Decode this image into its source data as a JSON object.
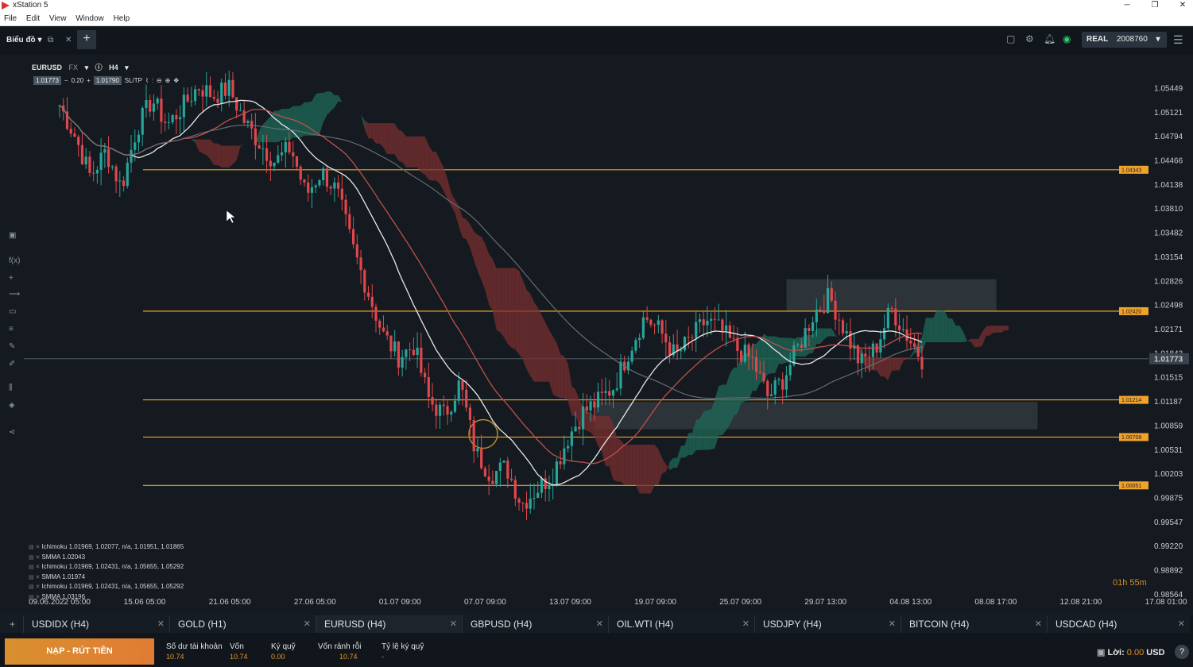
{
  "window": {
    "title": "xStation 5",
    "controls": [
      "─",
      "❐",
      "✕"
    ]
  },
  "menu": [
    "File",
    "Edit",
    "View",
    "Window",
    "Help"
  ],
  "header": {
    "tab_label": "Biểu đồ",
    "account_type": "REAL",
    "account_number": "2008760"
  },
  "instrument": {
    "symbol": "EURUSD",
    "market": "FX",
    "timeframe": "H4",
    "bid": "1.01773",
    "volume": "0.20",
    "ask": "1.01790",
    "sltp_label": "SL/TP"
  },
  "chart_data": {
    "type": "candlestick",
    "symbol": "EURUSD",
    "timeframe": "H4",
    "y_ticks": [
      "1.05449",
      "1.05121",
      "1.04794",
      "1.04466",
      "1.04138",
      "1.03810",
      "1.03482",
      "1.03154",
      "1.02826",
      "1.02498",
      "1.02171",
      "1.01843",
      "1.01515",
      "1.01187",
      "1.00859",
      "1.00531",
      "1.00203",
      "0.99875",
      "0.99547",
      "0.99220",
      "0.98892",
      "0.98564"
    ],
    "ylim": [
      0.98564,
      1.05777
    ],
    "x_ticks": [
      "09.06.2022 05:00",
      "15.06 05:00",
      "21.06 05:00",
      "27.06 05:00",
      "01.07 09:00",
      "07.07 09:00",
      "13.07 09:00",
      "19.07 09:00",
      "25.07 09:00",
      "29.07 13:00",
      "04.08 13:00",
      "08.08 17:00",
      "12.08 21:00",
      "17.08 01:00"
    ],
    "current_price": "1.01773",
    "horizontal_levels": [
      "1.04343",
      "1.02420",
      "1.01214",
      "1.00708",
      "1.00051"
    ],
    "price_path": [
      1.0522,
      1.048,
      1.0425,
      1.046,
      1.041,
      1.049,
      1.053,
      1.0495,
      1.052,
      1.0548,
      1.0535,
      1.0545,
      1.05,
      1.047,
      1.0445,
      1.0465,
      1.04,
      1.0432,
      1.0405,
      1.033,
      1.027,
      1.021,
      1.018,
      1.0195,
      1.012,
      1.01,
      1.0145,
      1.005,
      1.002,
      1.003,
      0.998,
      1.0,
      1.002,
      1.007,
      1.0105,
      1.012,
      1.014,
      1.019,
      1.0235,
      1.0215,
      1.018,
      1.0205,
      1.023,
      1.0215,
      1.019,
      1.0175,
      1.0125,
      1.015,
      1.0195,
      1.024,
      1.0262,
      1.0215,
      1.017,
      1.0192,
      1.0245,
      1.021,
      1.0177
    ]
  },
  "legend": [
    "Ichimoku 1.01969, 1.02077, n/a, 1.01951, 1.01865",
    "SMMA 1.02043",
    "Ichimoku 1.01969, 1.02431, n/a, 1.05655, 1.05292",
    "SMMA 1.01974",
    "Ichimoku 1.01969, 1.02431, n/a, 1.05655, 1.05292",
    "SMMA 1.03196"
  ],
  "timer": "01h 55m",
  "symbol_tabs": [
    "USDIDX (H4)",
    "GOLD (H1)",
    "EURUSD (H4)",
    "GBPUSD (H4)",
    "OIL.WTI (H4)",
    "USDJPY (H4)",
    "BITCOIN (H4)",
    "USDCAD (H4)"
  ],
  "footer": {
    "deposit_label": "NẠP - RÚT TIỀN",
    "stats": [
      {
        "label": "Số dư tài khoản",
        "value": "10.74"
      },
      {
        "label": "Vốn",
        "value": "10.74"
      },
      {
        "label": "Ký quỹ",
        "value": "0.00"
      },
      {
        "label": "Vốn rảnh rỗi",
        "value": "10.74"
      },
      {
        "label": "Tỷ lệ ký quỹ",
        "value": "-"
      }
    ],
    "profit_label": "Lời:",
    "profit_value": "0.00",
    "currency": "USD"
  },
  "colors": {
    "level_line": "#f0a22b",
    "bull": "#26a69a",
    "bear": "#e0474c",
    "cloud_bull": "#1f6b5a",
    "cloud_bear": "#7a2f2f"
  }
}
